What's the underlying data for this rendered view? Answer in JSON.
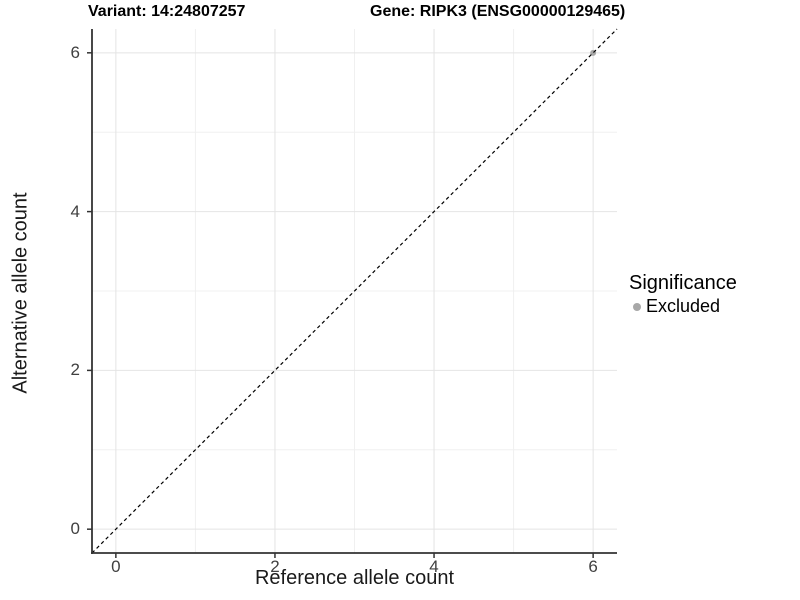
{
  "chart_data": {
    "type": "scatter",
    "title_left": "Variant: 14:24807257",
    "title_right": "Gene: RIPK3 (ENSG00000129465)",
    "xlabel": "Reference allele count",
    "ylabel": "Alternative allele count",
    "xlim": [
      -0.3,
      6.3
    ],
    "ylim": [
      -0.3,
      6.3
    ],
    "x_major_ticks": [
      0,
      2,
      4,
      6
    ],
    "y_major_ticks": [
      0,
      2,
      4,
      6
    ],
    "x_minor_gridlines": [
      1,
      3,
      5
    ],
    "y_minor_gridlines": [
      1,
      3,
      5
    ],
    "grid": "on",
    "reference_line": {
      "kind": "identity y=x",
      "style": "dashed",
      "color": "#000000"
    },
    "series": [
      {
        "name": "Excluded",
        "color": "#A8A8A8",
        "points": [
          {
            "x": 6,
            "y": 6
          }
        ]
      }
    ],
    "legend": {
      "title": "Significance",
      "position": "right",
      "entries": [
        {
          "label": "Excluded",
          "color": "#A8A8A8"
        }
      ]
    },
    "colors": {
      "major_grid": "#E4E4E4",
      "minor_grid": "#F0F0F0",
      "axis_line": "#333333",
      "tick_text": "#404040"
    }
  }
}
